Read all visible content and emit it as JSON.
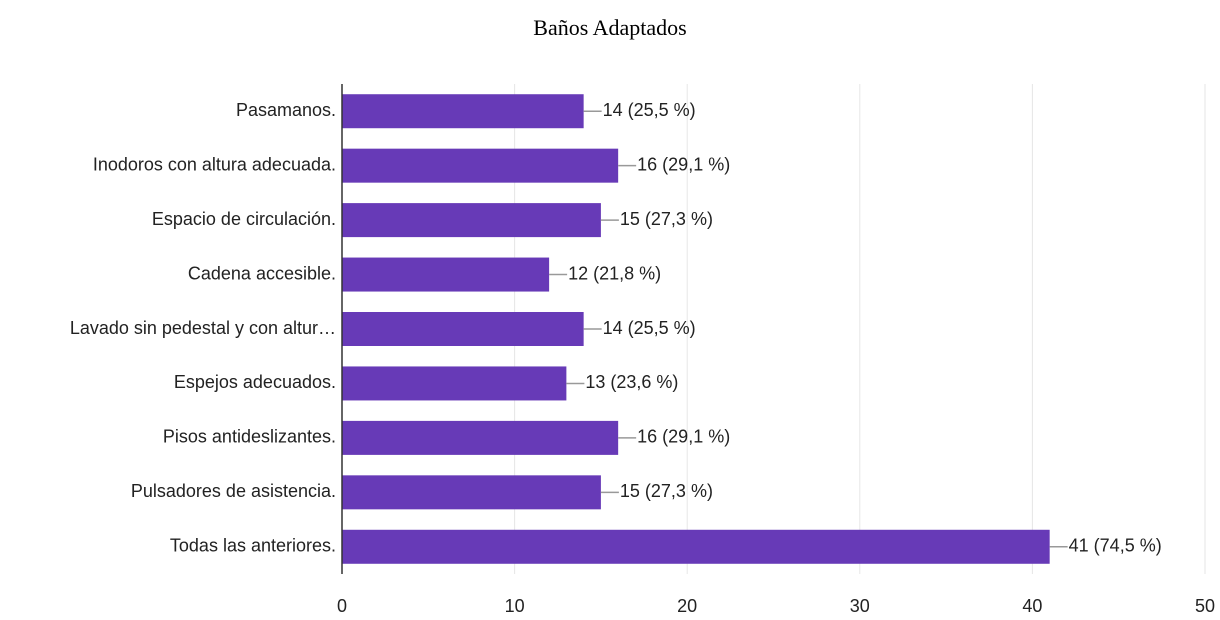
{
  "chart_data": {
    "type": "barh",
    "title": "Baños Adaptados",
    "categories": [
      "Pasamanos.",
      "Inodoros con altura adecuada.",
      "Espacio de circulación.",
      "Cadena accesible.",
      "Lavado sin pedestal y con altur…",
      "Espejos adecuados.",
      "Pisos antideslizantes.",
      "Pulsadores de asistencia.",
      "Todas las anteriores."
    ],
    "values": [
      14,
      16,
      15,
      12,
      14,
      13,
      16,
      15,
      41
    ],
    "value_labels": [
      "14 (25,5 %)",
      "16 (29,1 %)",
      "15 (27,3 %)",
      "12 (21,8 %)",
      "14 (25,5 %)",
      "13 (23,6 %)",
      "16 (29,1 %)",
      "15 (27,3 %)",
      "41 (74,5 %)"
    ],
    "color": "#673ab7",
    "xlim": [
      0,
      50
    ],
    "xticks": [
      0,
      10,
      20,
      30,
      40,
      50
    ],
    "grid": true
  }
}
